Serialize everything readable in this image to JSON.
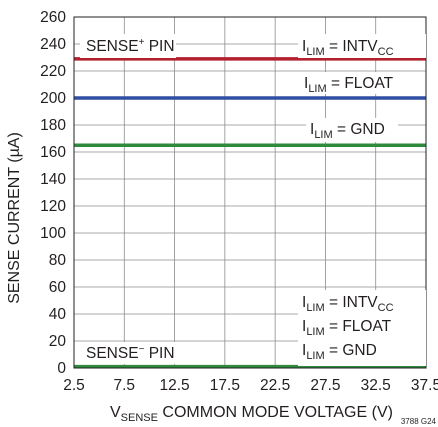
{
  "chart_data": {
    "type": "line",
    "title": "",
    "xlabel": {
      "main": "V",
      "sub": "SENSE",
      "rest": " COMMON MODE VOLTAGE (V)"
    },
    "ylabel": "SENSE CURRENT (µA)",
    "xlim": [
      2.5,
      37.5
    ],
    "ylim": [
      0,
      260
    ],
    "x_ticks": [
      2.5,
      7.5,
      12.5,
      17.5,
      22.5,
      27.5,
      32.5,
      37.5
    ],
    "x_tick_labels": [
      "2.5",
      "7.5",
      "12.5",
      "17.5",
      "22.5",
      "27.5",
      "32.5",
      "37.5"
    ],
    "y_ticks": [
      0,
      20,
      40,
      60,
      80,
      100,
      120,
      140,
      160,
      180,
      200,
      220,
      240,
      260
    ],
    "y_tick_labels": [
      "0",
      "20",
      "40",
      "60",
      "80",
      "100",
      "120",
      "140",
      "160",
      "180",
      "200",
      "220",
      "240",
      "260"
    ],
    "grid": true,
    "series": [
      {
        "color": "#b5202e",
        "x": [
          2.5,
          37.5
        ],
        "y": [
          229,
          229
        ]
      },
      {
        "color": "#2e4fa3",
        "x": [
          2.5,
          37.5
        ],
        "y": [
          200,
          200
        ]
      },
      {
        "color": "#2e8b3e",
        "x": [
          2.5,
          37.5
        ],
        "y": [
          165,
          165
        ]
      },
      {
        "color": "#2e8b3e",
        "x": [
          2.5,
          37.5
        ],
        "y": [
          1,
          1
        ]
      }
    ],
    "annotations": {
      "sense_plus": {
        "main": "SENSE",
        "sup": "+",
        "rest": " PIN"
      },
      "sense_minus": {
        "main": "SENSE",
        "sup": "−",
        "rest": " PIN"
      },
      "upper_intvcc": {
        "pre": "I",
        "sub": "LIM",
        "mid": " = INTV",
        "sub2": "CC"
      },
      "upper_float": {
        "pre": "I",
        "sub": "LIM",
        "mid": " = FLOAT"
      },
      "upper_gnd": {
        "pre": "I",
        "sub": "LIM",
        "mid": " = GND"
      },
      "lower_intvcc": {
        "pre": "I",
        "sub": "LIM",
        "mid": " = INTV",
        "sub2": "CC"
      },
      "lower_float": {
        "pre": "I",
        "sub": "LIM",
        "mid": " = FLOAT"
      },
      "lower_gnd": {
        "pre": "I",
        "sub": "LIM",
        "mid": " = GND"
      }
    },
    "figure_id": "3788 G24"
  }
}
